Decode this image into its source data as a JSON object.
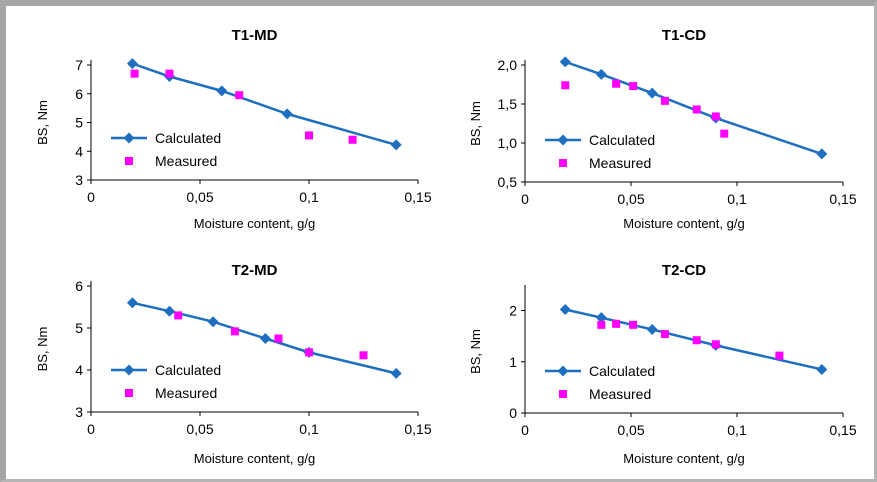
{
  "colors": {
    "calculated": "#1f6fc0",
    "measured": "#ff00ff",
    "frame": "#a6a6a6"
  },
  "chart_data": [
    {
      "type": "line",
      "title": "T1-MD",
      "xlabel": "Moisture content, g/g",
      "ylabel": "BS, Nm",
      "xlim": [
        0,
        0.15
      ],
      "ylim": [
        3,
        7
      ],
      "xticks": [
        0,
        0.05,
        0.1,
        0.15
      ],
      "xtick_labels": [
        "0",
        "0,05",
        "0,1",
        "0,15"
      ],
      "yticks": [
        3,
        4,
        5,
        6,
        7
      ],
      "ytick_labels": [
        "3",
        "4",
        "5",
        "6",
        "7"
      ],
      "legend": [
        "Calculated",
        "Measured"
      ],
      "series": [
        {
          "name": "Calculated",
          "type": "line",
          "x": [
            0.019,
            0.036,
            0.06,
            0.09,
            0.14
          ],
          "y": [
            7.05,
            6.6,
            6.1,
            5.3,
            4.22
          ]
        },
        {
          "name": "Measured",
          "type": "scatter",
          "x": [
            0.02,
            0.036,
            0.068,
            0.1,
            0.12
          ],
          "y": [
            6.7,
            6.7,
            5.95,
            4.55,
            4.4
          ]
        }
      ]
    },
    {
      "type": "line",
      "title": "T1-CD",
      "xlabel": "Moisture content, g/g",
      "ylabel": "BS, Nm",
      "xlim": [
        0,
        0.15
      ],
      "ylim": [
        0.5,
        2.0
      ],
      "xticks": [
        0,
        0.05,
        0.1,
        0.15
      ],
      "xtick_labels": [
        "0",
        "0,05",
        "0,1",
        "0,15"
      ],
      "yticks": [
        0.5,
        1.0,
        1.5,
        2.0
      ],
      "ytick_labels": [
        "0,5",
        "1,0",
        "1,5",
        "2,0"
      ],
      "legend": [
        "Calculated",
        "Measured"
      ],
      "series": [
        {
          "name": "Calculated",
          "type": "line",
          "x": [
            0.019,
            0.036,
            0.06,
            0.09,
            0.14
          ],
          "y": [
            2.04,
            1.88,
            1.64,
            1.32,
            0.86
          ]
        },
        {
          "name": "Measured",
          "type": "scatter",
          "x": [
            0.019,
            0.043,
            0.051,
            0.066,
            0.081,
            0.09,
            0.094
          ],
          "y": [
            1.74,
            1.76,
            1.73,
            1.54,
            1.43,
            1.34,
            1.12
          ]
        }
      ]
    },
    {
      "type": "line",
      "title": "T2-MD",
      "xlabel": "Moisture content, g/g",
      "ylabel": "BS, Nm",
      "xlim": [
        0,
        0.15
      ],
      "ylim": [
        3,
        6
      ],
      "xticks": [
        0,
        0.05,
        0.1,
        0.15
      ],
      "xtick_labels": [
        "0",
        "0,05",
        "0,1",
        "0,15"
      ],
      "yticks": [
        3,
        4,
        5,
        6
      ],
      "ytick_labels": [
        "3",
        "4",
        "5",
        "6"
      ],
      "legend": [
        "Calculated",
        "Measured"
      ],
      "series": [
        {
          "name": "Calculated",
          "type": "line",
          "x": [
            0.019,
            0.036,
            0.056,
            0.08,
            0.1,
            0.14
          ],
          "y": [
            5.6,
            5.4,
            5.15,
            4.75,
            4.42,
            3.92
          ]
        },
        {
          "name": "Measured",
          "type": "scatter",
          "x": [
            0.04,
            0.066,
            0.086,
            0.1,
            0.125
          ],
          "y": [
            5.3,
            4.92,
            4.75,
            4.42,
            4.35
          ]
        }
      ]
    },
    {
      "type": "line",
      "title": "T2-CD",
      "xlabel": "Moisture content, g/g",
      "ylabel": "BS, Nm",
      "xlim": [
        0,
        0.15
      ],
      "ylim": [
        0,
        2.4
      ],
      "xticks": [
        0,
        0.05,
        0.1,
        0.15
      ],
      "xtick_labels": [
        "0",
        "0,05",
        "0,1",
        "0,15"
      ],
      "yticks": [
        0,
        1,
        2
      ],
      "ytick_labels": [
        "0",
        "1",
        "2"
      ],
      "legend": [
        "Calculated",
        "Measured"
      ],
      "series": [
        {
          "name": "Calculated",
          "type": "line",
          "x": [
            0.019,
            0.036,
            0.06,
            0.09,
            0.14
          ],
          "y": [
            2.02,
            1.86,
            1.63,
            1.32,
            0.85
          ]
        },
        {
          "name": "Measured",
          "type": "scatter",
          "x": [
            0.036,
            0.043,
            0.051,
            0.066,
            0.081,
            0.09,
            0.12
          ],
          "y": [
            1.72,
            1.74,
            1.72,
            1.54,
            1.42,
            1.34,
            1.12
          ]
        }
      ]
    }
  ]
}
